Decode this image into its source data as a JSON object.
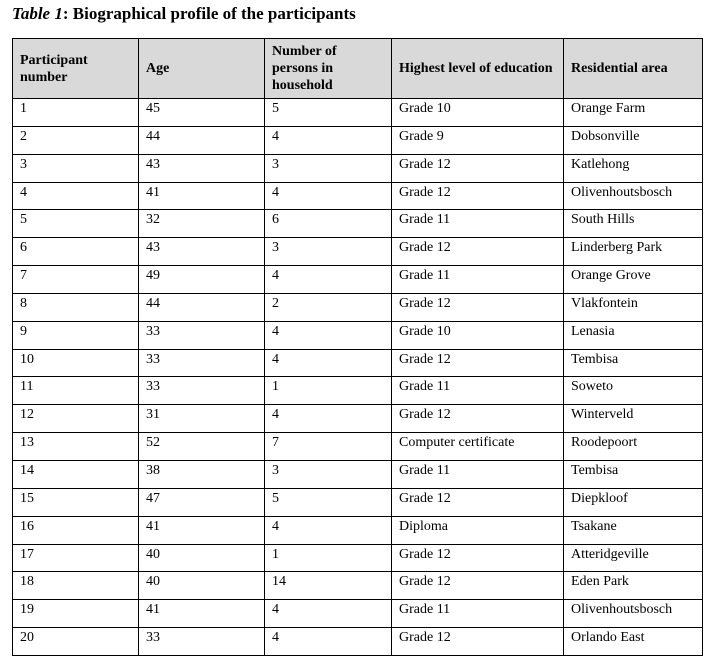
{
  "title": {
    "label": "Table 1",
    "text": ": Biographical profile of the participants"
  },
  "table": {
    "header_bg": "#d9d9d9",
    "columns": [
      "Participant number",
      "Age",
      "Number of persons in household",
      "Highest level of education",
      "Residential area"
    ],
    "rows": [
      [
        "1",
        "45",
        "5",
        "Grade 10",
        "Orange Farm"
      ],
      [
        "2",
        "44",
        "4",
        "Grade 9",
        "Dobsonville"
      ],
      [
        "3",
        "43",
        "3",
        "Grade 12",
        "Katlehong"
      ],
      [
        "4",
        "41",
        "4",
        "Grade 12",
        "Olivenhoutsbosch"
      ],
      [
        "5",
        "32",
        "6",
        "Grade 11",
        "South Hills"
      ],
      [
        "6",
        "43",
        "3",
        "Grade 12",
        "Linderberg Park"
      ],
      [
        "7",
        "49",
        "4",
        "Grade 11",
        "Orange Grove"
      ],
      [
        "8",
        "44",
        "2",
        "Grade 12",
        "Vlakfontein"
      ],
      [
        "9",
        "33",
        "4",
        "Grade 10",
        "Lenasia"
      ],
      [
        "10",
        "33",
        "4",
        "Grade 12",
        "Tembisa"
      ],
      [
        "11",
        "33",
        "1",
        "Grade 11",
        "Soweto"
      ],
      [
        "12",
        "31",
        "4",
        "Grade 12",
        "Winterveld"
      ],
      [
        "13",
        "52",
        "7",
        "Computer certificate",
        "Roodepoort"
      ],
      [
        "14",
        "38",
        "3",
        "Grade 11",
        "Tembisa"
      ],
      [
        "15",
        "47",
        "5",
        "Grade 12",
        "Diepkloof"
      ],
      [
        "16",
        "41",
        "4",
        "Diploma",
        "Tsakane"
      ],
      [
        "17",
        "40",
        "1",
        "Grade 12",
        "Atteridgeville"
      ],
      [
        "18",
        "40",
        "14",
        "Grade 12",
        "Eden Park"
      ],
      [
        "19",
        "41",
        "4",
        "Grade 11",
        "Olivenhoutsbosch"
      ],
      [
        "20",
        "33",
        "4",
        "Grade 12",
        "Orlando East"
      ]
    ]
  }
}
